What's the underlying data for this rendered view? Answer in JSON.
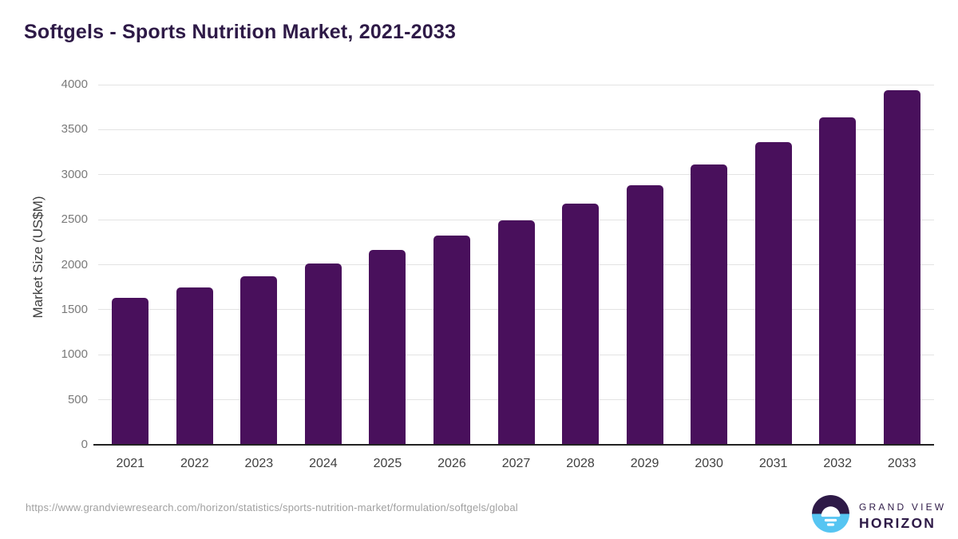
{
  "title": "Softgels - Sports Nutrition Market, 2021-2033",
  "chart_data": {
    "type": "bar",
    "title": "Softgels - Sports Nutrition Market, 2021-2033",
    "categories": [
      "2021",
      "2022",
      "2023",
      "2024",
      "2025",
      "2026",
      "2027",
      "2028",
      "2029",
      "2030",
      "2031",
      "2032",
      "2033"
    ],
    "values": [
      1630,
      1750,
      1875,
      2010,
      2160,
      2320,
      2490,
      2680,
      2885,
      3115,
      3365,
      3635,
      3940
    ],
    "xlabel": "",
    "ylabel": "Market Size (US$M)",
    "ylim": [
      0,
      4000
    ],
    "yticks": [
      0,
      500,
      1000,
      1500,
      2000,
      2500,
      3000,
      3500,
      4000
    ],
    "grid": true,
    "legend": false
  },
  "footer": {
    "source_url": "https://www.grandviewresearch.com/horizon/statistics/sports-nutrition-market/formulation/softgels/global"
  },
  "logo": {
    "line1": "GRAND VIEW",
    "line2": "HORIZON"
  },
  "colors": {
    "bar": "#49105c",
    "title": "#2e1a47",
    "axis": "#222222",
    "grid": "#e3e3e3",
    "ytick_label": "#7a7a7a",
    "xtick_label": "#3f3f3f",
    "y_axis_title": "#3d3d3d",
    "footer": "#a0a0a0",
    "logo_dark": "#2e1a47",
    "logo_blue": "#56c5f2",
    "logo_white": "#ffffff"
  }
}
